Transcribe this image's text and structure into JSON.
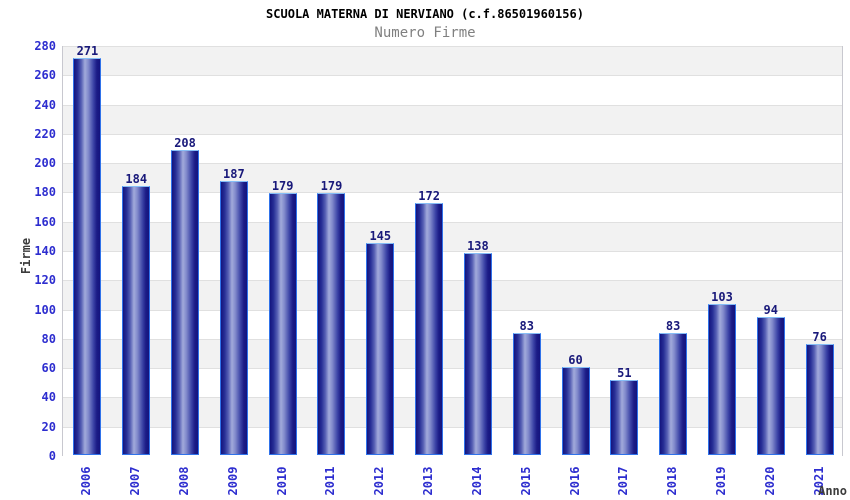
{
  "chart_data": {
    "type": "bar",
    "title": "SCUOLA MATERNA DI NERVIANO (c.f.86501960156)",
    "subtitle": "Numero Firme",
    "xlabel": "Anno",
    "ylabel": "Firme",
    "categories": [
      "2006",
      "2007",
      "2008",
      "2009",
      "2010",
      "2011",
      "2012",
      "2013",
      "2014",
      "2015",
      "2016",
      "2017",
      "2018",
      "2019",
      "2020",
      "2021"
    ],
    "values": [
      271,
      184,
      208,
      187,
      179,
      179,
      145,
      172,
      138,
      83,
      60,
      51,
      83,
      103,
      94,
      76
    ],
    "ylim": [
      0,
      280
    ],
    "ytick_step": 20,
    "grid": "horizontal-gridlines-with-alternating-bands",
    "legend": "none",
    "bar_value_labels": true,
    "colors": {
      "tick": "#2d2dcf",
      "value": "#19197a",
      "subtitle": "#808080",
      "axistitle": "#3c3c3c",
      "band": "#f2f2f2",
      "grid": "#e0e0e0",
      "axis": "#c8c8cf",
      "bar-dark": "#14147e",
      "bar-light": "#a2aadb",
      "bar-border": "#2f72ea",
      "bar-cap": "#85bdf6"
    }
  }
}
